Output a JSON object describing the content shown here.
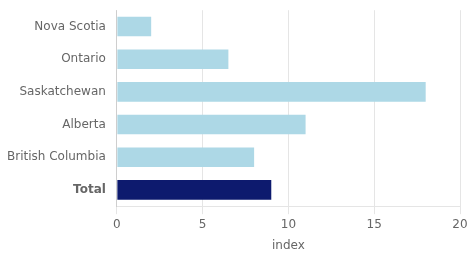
{
  "chart_data": {
    "type": "bar",
    "orientation": "horizontal",
    "categories": [
      "Total",
      "British Columbia",
      "Alberta",
      "Saskatchewan",
      "Ontario",
      "Nova Scotia"
    ],
    "values": [
      9.0,
      8.0,
      11.0,
      18.0,
      6.5,
      2.0
    ],
    "colors": [
      "#0d1a6e",
      "#add8e6",
      "#add8e6",
      "#add8e6",
      "#add8e6",
      "#add8e6"
    ],
    "xlabel": "index",
    "xlim": [
      0,
      20
    ],
    "xticks": [
      0,
      5,
      10,
      15,
      20
    ],
    "grid": true
  }
}
